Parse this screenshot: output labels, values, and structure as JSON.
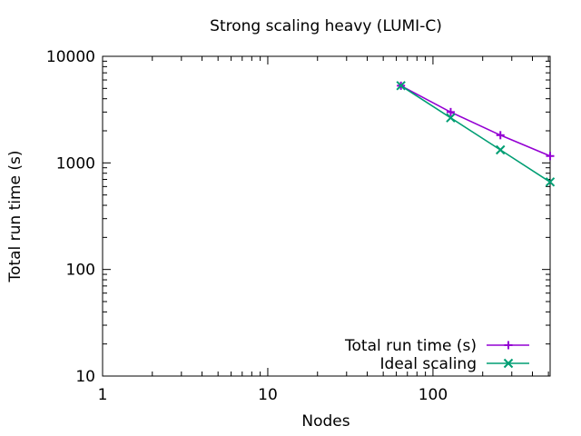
{
  "chart_data": {
    "type": "line",
    "title": "Strong scaling heavy (LUMI-C)",
    "xlabel": "Nodes",
    "ylabel": "Total run time (s)",
    "xscale": "log",
    "yscale": "log",
    "xlim": [
      1,
      512
    ],
    "ylim": [
      10,
      10000
    ],
    "xticks": [
      1,
      10,
      100
    ],
    "xtick_labels": [
      "1",
      "10",
      "100"
    ],
    "yticks": [
      10,
      100,
      1000,
      10000
    ],
    "ytick_labels": [
      "10",
      "100",
      "1000",
      "10000"
    ],
    "grid": false,
    "legend_position": "bottom-right",
    "series": [
      {
        "name": "Total run time (s)",
        "color": "#9400d3",
        "marker": "plus",
        "x": [
          64,
          128,
          256,
          512
        ],
        "y": [
          5300,
          3000,
          1820,
          1160
        ]
      },
      {
        "name": "Ideal scaling",
        "color": "#009e73",
        "marker": "cross",
        "x": [
          64,
          128,
          256,
          512
        ],
        "y": [
          5300,
          2650,
          1325,
          662
        ]
      }
    ]
  }
}
